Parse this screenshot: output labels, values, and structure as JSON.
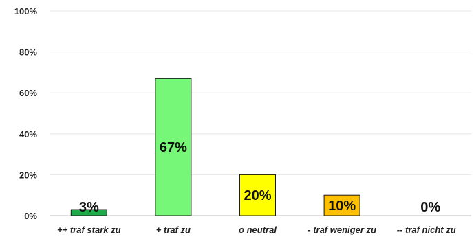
{
  "chart_data": {
    "type": "bar",
    "categories": [
      "++ traf stark zu",
      "+ traf zu",
      "o neutral",
      "- traf weniger zu",
      "-- traf nicht zu"
    ],
    "values": [
      3,
      67,
      20,
      10,
      0
    ],
    "data_labels": [
      "3%",
      "67%",
      "20%",
      "10%",
      "0%"
    ],
    "bar_colors": [
      "#1faa4a",
      "#77f777",
      "#ffff00",
      "#ffc000",
      "#ffffff"
    ],
    "ylim": [
      0,
      100
    ],
    "yticks": [
      0,
      20,
      40,
      60,
      80,
      100
    ],
    "ytick_labels": [
      "0%",
      "20%",
      "40%",
      "60%",
      "80%",
      "100%"
    ],
    "grid": true,
    "title": "",
    "xlabel": "",
    "ylabel": ""
  }
}
